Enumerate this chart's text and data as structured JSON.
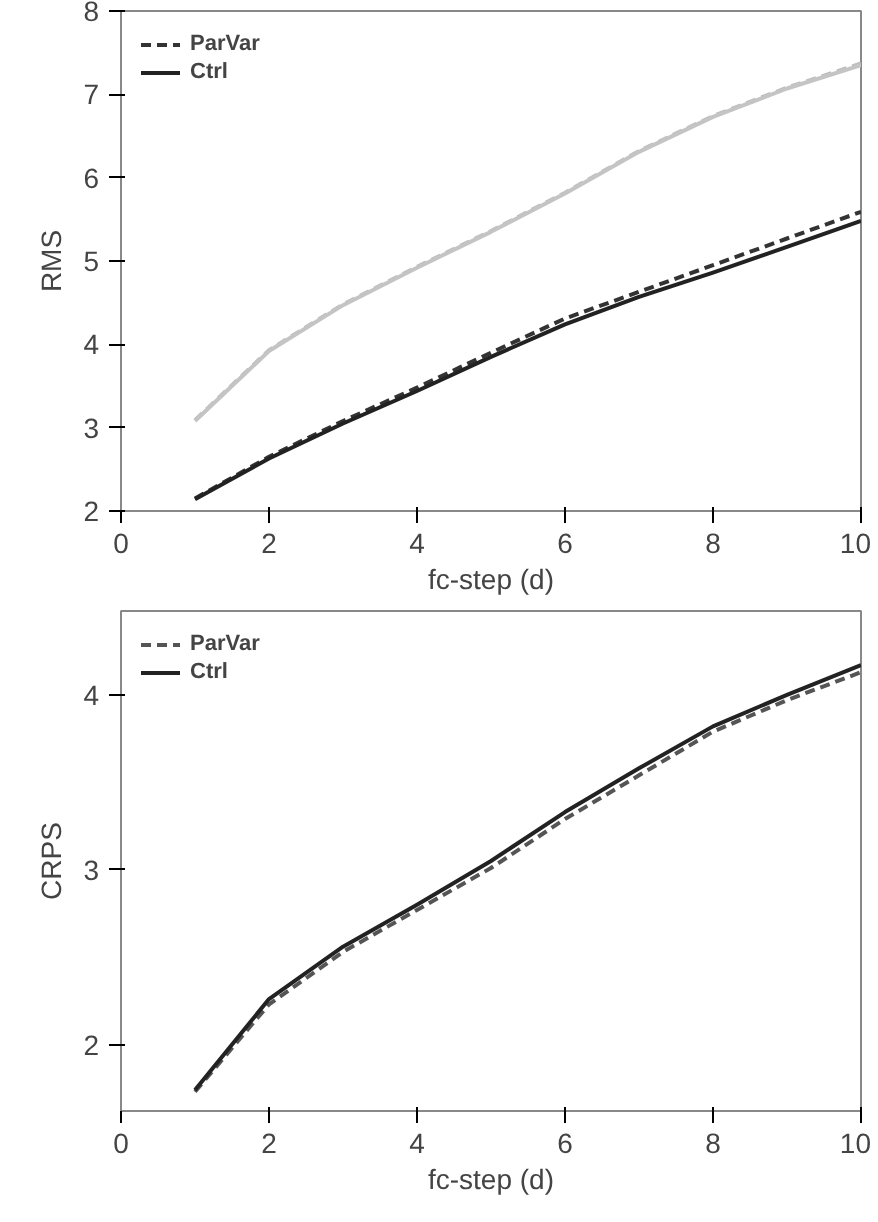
{
  "chart_data": [
    {
      "type": "line",
      "xlabel": "fc-step (d)",
      "ylabel": "RMS",
      "x": [
        1,
        2,
        3,
        4,
        5,
        6,
        7,
        8,
        9,
        10
      ],
      "xlim": [
        0,
        10
      ],
      "xticks": [
        0,
        2,
        4,
        6,
        8,
        10
      ],
      "ylim": [
        2,
        8
      ],
      "yticks": [
        2,
        3,
        4,
        5,
        6,
        7,
        8
      ],
      "grid": false,
      "legend": "top left",
      "marker": "none",
      "series": [
        {
          "color": "#bdbdbd",
          "line_style": "dashed",
          "values": [
            3.09,
            3.93,
            4.48,
            4.93,
            5.36,
            5.82,
            6.32,
            6.74,
            7.08,
            7.37
          ]
        },
        {
          "color": "#c4c4c4",
          "line_style": "solid",
          "values": [
            3.08,
            3.92,
            4.47,
            4.92,
            5.35,
            5.81,
            6.31,
            6.73,
            7.07,
            7.35
          ]
        },
        {
          "name": "ParVar",
          "color": "#333333",
          "line_style": "dashed",
          "values": [
            2.15,
            2.65,
            3.08,
            3.48,
            3.9,
            4.31,
            4.63,
            4.95,
            5.27,
            5.59
          ]
        },
        {
          "name": "Ctrl",
          "color": "#222222",
          "line_style": "solid",
          "values": [
            2.14,
            2.63,
            3.05,
            3.44,
            3.85,
            4.24,
            4.57,
            4.86,
            5.17,
            5.48
          ]
        }
      ]
    },
    {
      "type": "line",
      "xlabel": "fc-step (d)",
      "ylabel": "CRPS",
      "x": [
        1,
        2,
        3,
        4,
        5,
        6,
        7,
        8,
        9,
        10
      ],
      "xlim": [
        0,
        10
      ],
      "xticks": [
        0,
        2,
        4,
        6,
        8,
        10
      ],
      "ylim": [
        1.62,
        4.48
      ],
      "yticks": [
        2,
        3,
        4
      ],
      "grid": false,
      "legend": "top left",
      "marker": "none",
      "series": [
        {
          "name": "ParVar",
          "color": "#555555",
          "line_style": "dashed",
          "values": [
            1.73,
            2.23,
            2.53,
            2.77,
            3.01,
            3.29,
            3.54,
            3.79,
            3.97,
            4.13
          ]
        },
        {
          "name": "Ctrl",
          "color": "#222222",
          "line_style": "solid",
          "values": [
            1.74,
            2.26,
            2.56,
            2.8,
            3.05,
            3.33,
            3.58,
            3.82,
            4.0,
            4.17
          ]
        }
      ]
    }
  ]
}
